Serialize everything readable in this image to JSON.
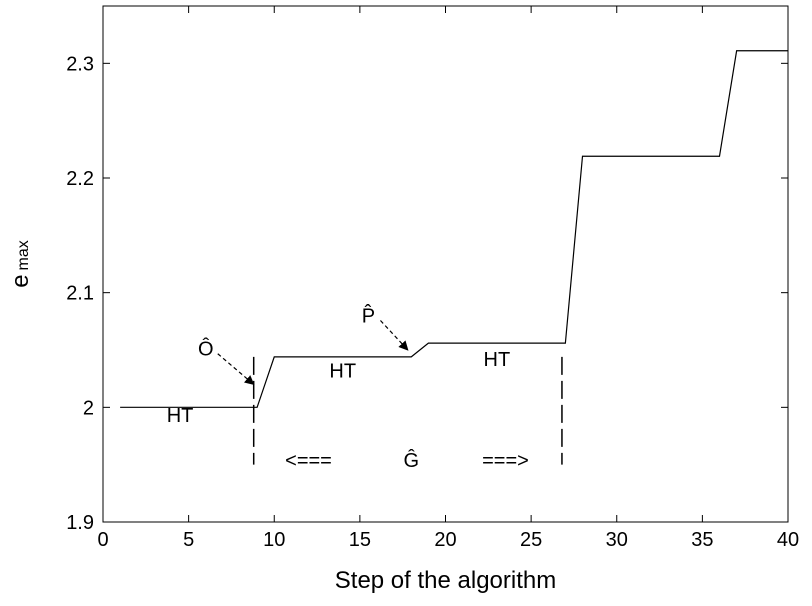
{
  "chart_data": {
    "type": "line",
    "xlabel": "Step of the algorithm",
    "ylabel": "e",
    "ylabel_sub": "max",
    "xlim": [
      0,
      40
    ],
    "ylim": [
      1.9,
      2.35
    ],
    "xticks": [
      0,
      5,
      10,
      15,
      20,
      25,
      30,
      35,
      40
    ],
    "yticks": [
      1.9,
      2,
      2.1,
      2.2,
      2.3
    ],
    "ytick_labels": [
      "1.9",
      "2",
      "2.1",
      "2.2",
      "2.3"
    ],
    "grid": false,
    "series": [
      {
        "x": [
          1,
          9,
          10,
          18,
          19,
          27,
          28,
          36,
          37,
          40
        ],
        "y": [
          2.0,
          2.0,
          2.044,
          2.044,
          2.056,
          2.056,
          2.219,
          2.219,
          2.311,
          2.311
        ]
      }
    ],
    "vlines": [
      8.8,
      26.8
    ],
    "annotations": [
      {
        "text": "HT",
        "x": 4.5,
        "y": 1.987
      },
      {
        "text": "HT",
        "x": 14,
        "y": 2.026
      },
      {
        "text": "HT",
        "x": 23,
        "y": 2.036
      },
      {
        "text": "Ô",
        "x": 6,
        "y": 2.045,
        "arrow_to": [
          8.8,
          2.02
        ]
      },
      {
        "text": "P̂",
        "x": 15.5,
        "y": 2.074,
        "arrow_to": [
          17.8,
          2.05
        ]
      },
      {
        "text": "Ĝ",
        "x": 18,
        "y": 1.948
      },
      {
        "text": "<===",
        "x": 12,
        "y": 1.948
      },
      {
        "text": "===>",
        "x": 23.5,
        "y": 1.948
      }
    ]
  }
}
